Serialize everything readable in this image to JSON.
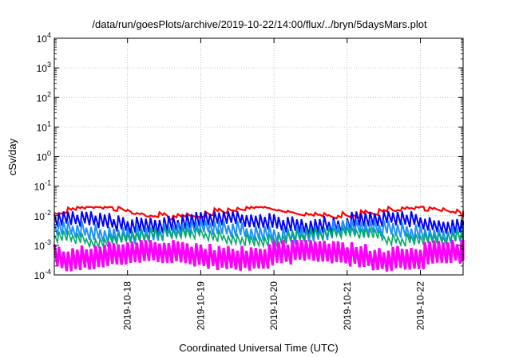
{
  "chart_data": {
    "type": "line",
    "title": "/data/run/goesPlots/archive/2019-10-22/14:00/flux/../bryn/5daysMars.plot",
    "xlabel": "Coordinated Universal Time (UTC)",
    "ylabel": "cSv/day",
    "y_scale": "log",
    "ylim": [
      0.0001,
      10000
    ],
    "y_ticks": [
      {
        "base": "10",
        "exp": "-4",
        "value": 0.0001
      },
      {
        "base": "10",
        "exp": "-3",
        "value": 0.001
      },
      {
        "base": "10",
        "exp": "-2",
        "value": 0.01
      },
      {
        "base": "10",
        "exp": "-1",
        "value": 0.1
      },
      {
        "base": "10",
        "exp": "0",
        "value": 1
      },
      {
        "base": "10",
        "exp": "1",
        "value": 10
      },
      {
        "base": "10",
        "exp": "2",
        "value": 100
      },
      {
        "base": "10",
        "exp": "3",
        "value": 1000
      },
      {
        "base": "10",
        "exp": "4",
        "value": 10000
      }
    ],
    "xlim": [
      "2019-10-17 00:00",
      "2019-10-22 14:00"
    ],
    "x_ticks": [
      "2019-10-18",
      "2019-10-19",
      "2019-10-20",
      "2019-10-21",
      "2019-10-22"
    ],
    "grid": true,
    "legend": "none",
    "series": [
      {
        "color": "#ff0000",
        "envelope_range": [
          0.007,
          0.02
        ]
      },
      {
        "color": "#0000ff",
        "envelope_range": [
          0.002,
          0.014
        ]
      },
      {
        "color": "#1e90ff",
        "envelope_range": [
          0.001,
          0.007
        ]
      },
      {
        "color": "#00aa66",
        "envelope_range": [
          0.0008,
          0.004
        ]
      },
      {
        "color": "#ff00ff",
        "envelope_range": [
          0.00012,
          0.0015
        ]
      }
    ]
  }
}
